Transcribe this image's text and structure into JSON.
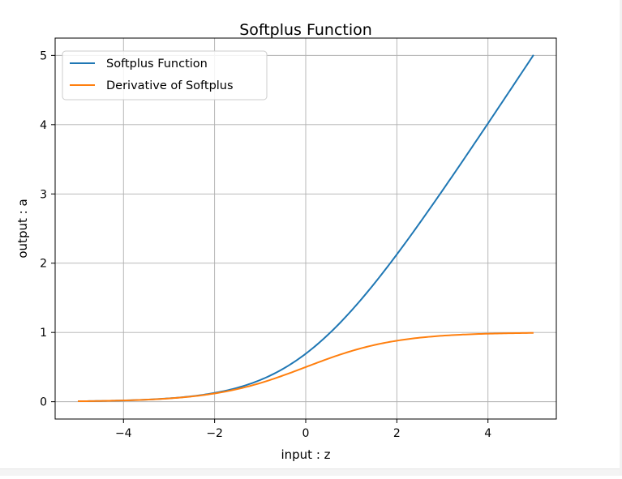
{
  "chart_data": {
    "type": "line",
    "title": "Softplus Function",
    "xlabel": "input : z",
    "ylabel": "output : a",
    "xlim": [
      -5.5,
      5.5
    ],
    "ylim": [
      -0.25,
      5.25
    ],
    "grid": true,
    "legend_position": "top-left",
    "x_ticks": [
      -4,
      -2,
      0,
      2,
      4
    ],
    "x_tick_labels": [
      "−4",
      "−2",
      "0",
      "2",
      "4"
    ],
    "y_ticks": [
      0,
      1,
      2,
      3,
      4,
      5
    ],
    "y_tick_labels": [
      "0",
      "1",
      "2",
      "3",
      "4",
      "5"
    ],
    "x": [
      -5,
      -4.5,
      -4,
      -3.5,
      -3,
      -2.5,
      -2,
      -1.5,
      -1,
      -0.5,
      0,
      0.5,
      1,
      1.5,
      2,
      2.5,
      3,
      3.5,
      4,
      4.5,
      5
    ],
    "series": [
      {
        "name": "Softplus Function",
        "color": "#1f77b4",
        "values": [
          0.007,
          0.011,
          0.018,
          0.03,
          0.049,
          0.079,
          0.127,
          0.201,
          0.313,
          0.474,
          0.693,
          0.974,
          1.313,
          1.701,
          2.127,
          2.579,
          3.049,
          3.53,
          4.018,
          4.511,
          5.007
        ]
      },
      {
        "name": "Derivative of Softplus",
        "color": "#ff7f0e",
        "values": [
          0.007,
          0.011,
          0.018,
          0.029,
          0.047,
          0.076,
          0.119,
          0.182,
          0.269,
          0.378,
          0.5,
          0.622,
          0.731,
          0.818,
          0.881,
          0.924,
          0.953,
          0.971,
          0.982,
          0.989,
          0.993
        ]
      }
    ]
  }
}
